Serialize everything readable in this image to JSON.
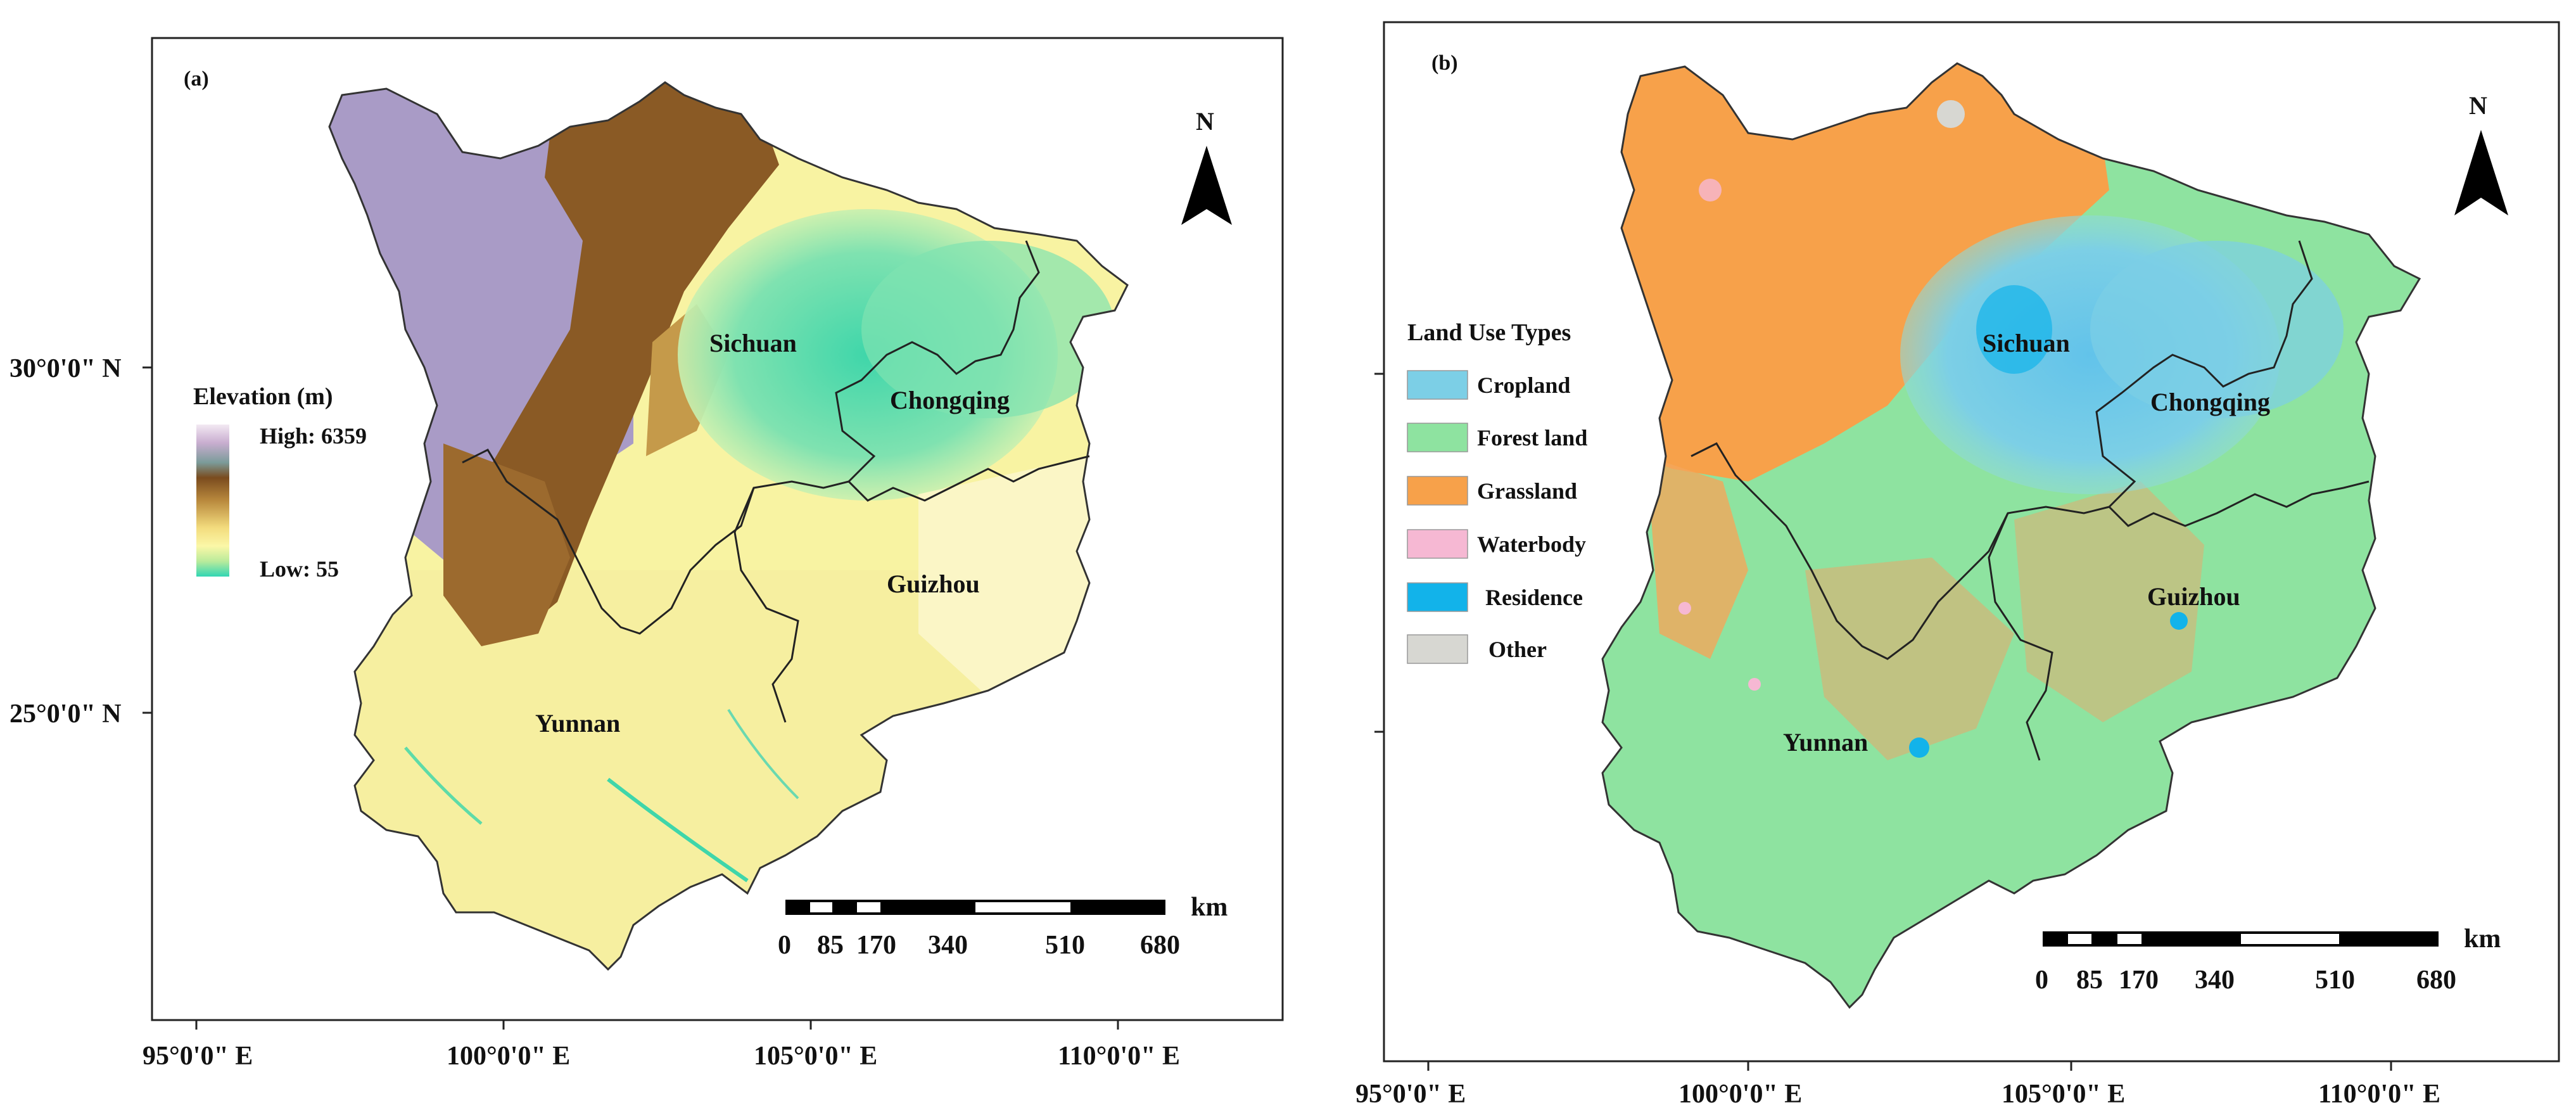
{
  "panel_a": {
    "label": "(a)",
    "lon_ticks": [
      "95°0'0\" E",
      "100°0'0\" E",
      "105°0'0\" E",
      "110°0'0\" E"
    ],
    "lat_ticks": [
      "30°0'0\" N",
      "25°0'0\" N"
    ],
    "provinces": [
      "Sichuan",
      "Chongqing",
      "Guizhou",
      "Yunnan"
    ],
    "legend": {
      "title": "Elevation (m)",
      "high_label": "High: 6359",
      "low_label": "Low: 55",
      "high": 6359,
      "low": 55
    },
    "north": "N",
    "scale": {
      "ticks": [
        "0",
        "85",
        "170",
        "340",
        "510",
        "680"
      ],
      "unit": "km"
    }
  },
  "panel_b": {
    "label": "(b)",
    "lon_ticks": [
      "95°0'0\" E",
      "100°0'0\" E",
      "105°0'0\" E",
      "110°0'0\" E"
    ],
    "provinces": [
      "Sichuan",
      "Chongqing",
      "Guizhou",
      "Yunnan"
    ],
    "legend": {
      "title": "Land Use Types",
      "items": [
        {
          "label": "Cropland",
          "color": "#7ccfe6"
        },
        {
          "label": "Forest land",
          "color": "#8ee3a0"
        },
        {
          "label": "Grassland",
          "color": "#f7a14a"
        },
        {
          "label": "Waterbody",
          "color": "#f6b8d3"
        },
        {
          "label": "Residence",
          "color": "#12b3ea"
        },
        {
          "label": "Other",
          "color": "#d7d7d2"
        }
      ]
    },
    "north": "N",
    "scale": {
      "ticks": [
        "0",
        "85",
        "170",
        "340",
        "510",
        "680"
      ],
      "unit": "km"
    }
  },
  "colors": {
    "elev_high": "#a99bc6",
    "elev_mid": "#8a5a25",
    "elev_low_yellow": "#f8f3a2",
    "elev_lowest": "#3fd6aa",
    "grassland": "#f7a14a",
    "forest": "#8ee3a0",
    "cropland": "#7ccfe6"
  }
}
